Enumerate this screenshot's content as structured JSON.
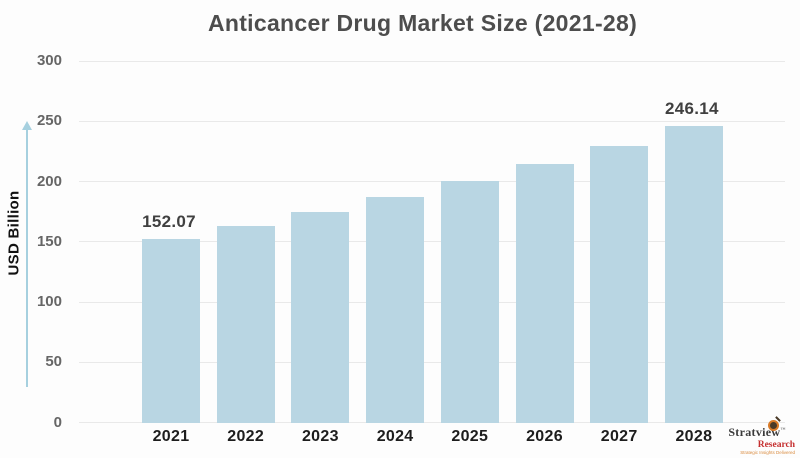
{
  "chart_data": {
    "type": "bar",
    "title": "Anticancer Drug Market Size (2021-28)",
    "xlabel": "",
    "ylabel": "USD Billion",
    "categories": [
      "2021",
      "2022",
      "2023",
      "2024",
      "2025",
      "2026",
      "2027",
      "2028"
    ],
    "values": [
      152.07,
      162.9,
      174.5,
      186.9,
      200.2,
      214.5,
      229.8,
      246.14
    ],
    "data_labels": [
      "152.07",
      "",
      "",
      "",
      "",
      "",
      "",
      "246.14"
    ],
    "ylim": [
      0,
      300
    ],
    "yticks": [
      0,
      50,
      100,
      150,
      200,
      250,
      300
    ],
    "grid": "horizontal",
    "legend": "none",
    "bar_color": "#b9d6e3"
  },
  "colors": {
    "background": "#fdfdfd",
    "bar": "#b9d6e3",
    "gridline": "#e9e9e9",
    "axis_arrow": "#a6d0df",
    "title_text": "#4d4d4d",
    "y_tick_text": "#666666",
    "x_tick_text": "#1d1d1d",
    "logo_research_red": "#c52f2f"
  },
  "logo": {
    "brand": "Stratview",
    "trademark": "TM",
    "sub_brand": "Research",
    "tagline": "Strategic Insights Delivered"
  }
}
